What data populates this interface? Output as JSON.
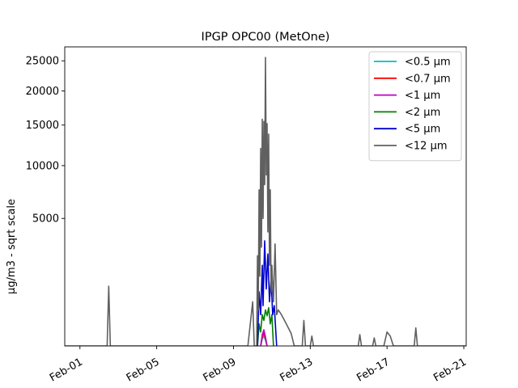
{
  "chart_data": {
    "type": "line",
    "title": "IPGP OPC00 (MetOne)",
    "xlabel": "",
    "ylabel": "µg/m3 - sqrt scale",
    "y_scale": "sqrt",
    "xlim": [
      "2024-01-31T05:00",
      "2024-02-21T03:00"
    ],
    "ylim": [
      0,
      27500
    ],
    "x_ticks": [
      "Feb-01",
      "Feb-05",
      "Feb-09",
      "Feb-13",
      "Feb-17",
      "Feb-21"
    ],
    "x_tick_dates": [
      "2024-02-01",
      "2024-02-05",
      "2024-02-09",
      "2024-02-13",
      "2024-02-17",
      "2024-02-21"
    ],
    "y_ticks": [
      5000,
      10000,
      15000,
      20000,
      25000
    ],
    "grid": false,
    "legend_position": "top-right",
    "series": [
      {
        "name": "<0.5 µm",
        "color": "#00bfbf",
        "points": [
          [
            "2024-02-10T10:00",
            0
          ],
          [
            "2024-02-10T12:00",
            15
          ],
          [
            "2024-02-10T14:00",
            30
          ],
          [
            "2024-02-10T16:00",
            10
          ],
          [
            "2024-02-10T18:00",
            0
          ]
        ]
      },
      {
        "name": "<0.7 µm",
        "color": "#ff0000",
        "points": [
          [
            "2024-02-10T10:00",
            0
          ],
          [
            "2024-02-10T12:00",
            25
          ],
          [
            "2024-02-10T14:00",
            50
          ],
          [
            "2024-02-10T16:00",
            15
          ],
          [
            "2024-02-10T18:00",
            0
          ]
        ]
      },
      {
        "name": "<1 µm",
        "color": "#bf00bf",
        "points": [
          [
            "2024-02-10T10:00",
            0
          ],
          [
            "2024-02-10T12:00",
            40
          ],
          [
            "2024-02-10T14:00",
            80
          ],
          [
            "2024-02-10T16:00",
            25
          ],
          [
            "2024-02-10T18:00",
            0
          ]
        ]
      },
      {
        "name": "<2 µm",
        "color": "#008000",
        "points": [
          [
            "2024-02-10T06:00",
            0
          ],
          [
            "2024-02-10T08:00",
            150
          ],
          [
            "2024-02-10T10:00",
            60
          ],
          [
            "2024-02-10T12:00",
            300
          ],
          [
            "2024-02-10T14:00",
            200
          ],
          [
            "2024-02-10T16:00",
            400
          ],
          [
            "2024-02-10T18:00",
            280
          ],
          [
            "2024-02-10T20:00",
            450
          ],
          [
            "2024-02-10T22:00",
            150
          ],
          [
            "2024-02-11T00:00",
            300
          ],
          [
            "2024-02-11T02:00",
            0
          ]
        ]
      },
      {
        "name": "<5 µm",
        "color": "#0000cd",
        "points": [
          [
            "2024-02-10T06:00",
            0
          ],
          [
            "2024-02-10T08:00",
            900
          ],
          [
            "2024-02-10T10:00",
            300
          ],
          [
            "2024-02-10T12:00",
            2000
          ],
          [
            "2024-02-10T13:00",
            500
          ],
          [
            "2024-02-10T15:00",
            3400
          ],
          [
            "2024-02-10T17:00",
            1000
          ],
          [
            "2024-02-10T19:00",
            2600
          ],
          [
            "2024-02-10T21:00",
            600
          ],
          [
            "2024-02-10T23:00",
            1400
          ],
          [
            "2024-02-11T01:00",
            300
          ],
          [
            "2024-02-11T03:00",
            500
          ],
          [
            "2024-02-11T06:00",
            0
          ]
        ]
      },
      {
        "name": "<12 µm",
        "color": "#606060",
        "points": [
          [
            "2024-01-31T05:00",
            0
          ],
          [
            "2024-02-02T10:00",
            0
          ],
          [
            "2024-02-02T12:00",
            1100
          ],
          [
            "2024-02-02T14:00",
            0
          ],
          [
            "2024-02-09T18:00",
            0
          ],
          [
            "2024-02-10T00:00",
            600
          ],
          [
            "2024-02-10T02:00",
            0
          ],
          [
            "2024-02-10T05:00",
            0
          ],
          [
            "2024-02-10T06:00",
            2500
          ],
          [
            "2024-02-10T07:00",
            400
          ],
          [
            "2024-02-10T08:00",
            7500
          ],
          [
            "2024-02-10T09:00",
            1500
          ],
          [
            "2024-02-10T10:00",
            12000
          ],
          [
            "2024-02-10T11:00",
            3000
          ],
          [
            "2024-02-10T12:00",
            15800
          ],
          [
            "2024-02-10T13:00",
            5000
          ],
          [
            "2024-02-10T14:00",
            15500
          ],
          [
            "2024-02-10T15:00",
            8000
          ],
          [
            "2024-02-10T16:00",
            25600
          ],
          [
            "2024-02-10T17:00",
            9000
          ],
          [
            "2024-02-10T18:00",
            15200
          ],
          [
            "2024-02-10T19:00",
            4000
          ],
          [
            "2024-02-10T20:00",
            13800
          ],
          [
            "2024-02-10T21:00",
            2000
          ],
          [
            "2024-02-10T22:00",
            7500
          ],
          [
            "2024-02-10T23:00",
            900
          ],
          [
            "2024-02-11T00:00",
            2000
          ],
          [
            "2024-02-11T02:00",
            600
          ],
          [
            "2024-02-11T04:00",
            3200
          ],
          [
            "2024-02-11T06:00",
            300
          ],
          [
            "2024-02-11T08:00",
            400
          ],
          [
            "2024-02-11T12:00",
            300
          ],
          [
            "2024-02-11T18:00",
            150
          ],
          [
            "2024-02-12T00:00",
            50
          ],
          [
            "2024-02-12T04:00",
            0
          ],
          [
            "2024-02-12T14:00",
            0
          ],
          [
            "2024-02-12T16:00",
            200
          ],
          [
            "2024-02-12T18:00",
            0
          ],
          [
            "2024-02-13T00:00",
            0
          ],
          [
            "2024-02-13T02:00",
            30
          ],
          [
            "2024-02-13T04:00",
            0
          ],
          [
            "2024-02-15T12:00",
            0
          ],
          [
            "2024-02-15T14:00",
            40
          ],
          [
            "2024-02-15T16:00",
            0
          ],
          [
            "2024-02-16T06:00",
            0
          ],
          [
            "2024-02-16T08:00",
            20
          ],
          [
            "2024-02-16T10:00",
            0
          ],
          [
            "2024-02-16T20:00",
            0
          ],
          [
            "2024-02-17T00:00",
            60
          ],
          [
            "2024-02-17T04:00",
            30
          ],
          [
            "2024-02-17T08:00",
            0
          ],
          [
            "2024-02-18T10:00",
            0
          ],
          [
            "2024-02-18T12:00",
            100
          ],
          [
            "2024-02-18T14:00",
            0
          ],
          [
            "2024-02-21T03:00",
            0
          ]
        ]
      }
    ]
  }
}
